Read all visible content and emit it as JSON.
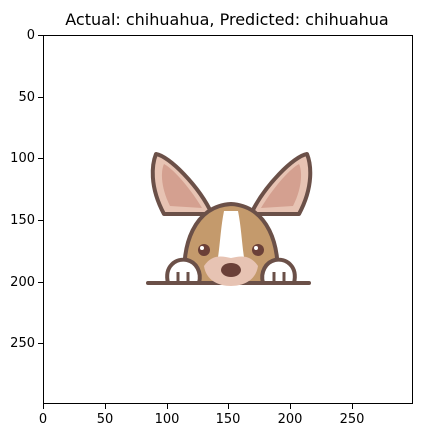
{
  "title": "Actual: chihuahua, Predicted: chihuahua",
  "image": {
    "content": "chihuahua-cartoon",
    "colors": {
      "outline": "#6b5048",
      "ear_inner": "#d4a090",
      "ear_outer": "#e7c3b3",
      "fur_tan": "#c49a6c",
      "face_cream": "#e7c3b3",
      "white": "#ffffff",
      "nose": "#6b4038",
      "ground": "#6b5048"
    }
  },
  "axes": {
    "x_ticks": [
      "0",
      "50",
      "100",
      "150",
      "200",
      "250"
    ],
    "y_ticks": [
      "0",
      "50",
      "100",
      "150",
      "200",
      "250"
    ]
  }
}
